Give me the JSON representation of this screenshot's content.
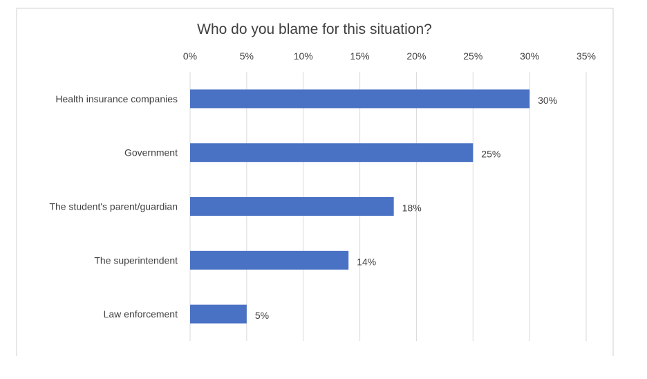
{
  "chart_data": {
    "type": "bar",
    "orientation": "horizontal",
    "title": "Who do you blame for this situation?",
    "categories": [
      "Health insurance companies",
      "Government",
      "The student's parent/guardian",
      "The superintendent",
      "Law enforcement"
    ],
    "values": [
      30,
      25,
      18,
      14,
      5
    ],
    "value_labels": [
      "30%",
      "25%",
      "18%",
      "14%",
      "5%"
    ],
    "x_ticks": [
      "0%",
      "5%",
      "10%",
      "15%",
      "20%",
      "25%",
      "30%",
      "35%"
    ],
    "xlim": [
      0,
      35
    ],
    "xlabel": "",
    "ylabel": "",
    "grid": true,
    "bar_color": "#4a72c4",
    "legend": "none"
  }
}
